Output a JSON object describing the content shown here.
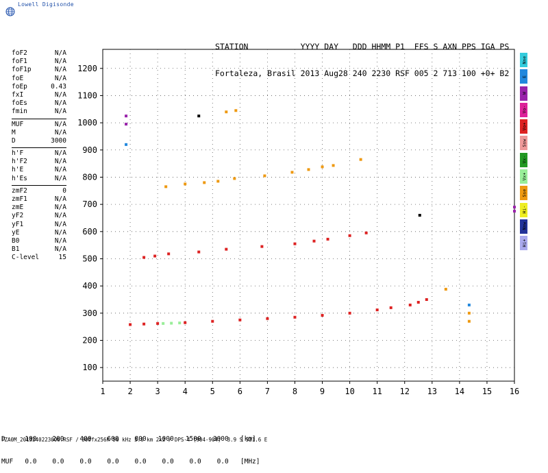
{
  "brand": {
    "name": "Lowell Digisonde",
    "logo_icon": "globe-icon"
  },
  "header": {
    "labels_line": "STATION           YYYY DAY   DDD HHMM P1  FFS S AXN PPS IGA PS",
    "values_line": "Fortaleza, Brasil 2013 Aug28 240 2230 RSF 005 2 713 100 +0+ B2"
  },
  "params": {
    "group1": [
      {
        "label": "foF2",
        "value": "N/A"
      },
      {
        "label": "foF1",
        "value": "N/A"
      },
      {
        "label": "foF1p",
        "value": "N/A"
      },
      {
        "label": "foE",
        "value": "N/A"
      },
      {
        "label": "foEp",
        "value": "0.43"
      },
      {
        "label": "fxI",
        "value": "N/A"
      },
      {
        "label": "foEs",
        "value": "N/A"
      },
      {
        "label": "fmin",
        "value": "N/A"
      }
    ],
    "group2": [
      {
        "label": "MUF",
        "value": "N/A"
      },
      {
        "label": "M",
        "value": "N/A"
      },
      {
        "label": "D",
        "value": "3000"
      }
    ],
    "group3": [
      {
        "label": "h'F",
        "value": "N/A"
      },
      {
        "label": "h'F2",
        "value": "N/A"
      },
      {
        "label": "h'E",
        "value": "N/A"
      },
      {
        "label": "h'Es",
        "value": "N/A"
      }
    ],
    "group4": [
      {
        "label": "zmF2",
        "value": "0"
      },
      {
        "label": "zmF1",
        "value": "N/A"
      },
      {
        "label": "zmE",
        "value": "N/A"
      },
      {
        "label": "yF2",
        "value": "N/A"
      },
      {
        "label": "yF1",
        "value": "N/A"
      },
      {
        "label": "yE",
        "value": "N/A"
      },
      {
        "label": "B0",
        "value": "N/A"
      },
      {
        "label": "B1",
        "value": "N/A"
      },
      {
        "label": "C-level",
        "value": "15"
      }
    ]
  },
  "legend": [
    {
      "label": "Nne",
      "color": "#33ccdd"
    },
    {
      "label": "E",
      "color": "#2288dd"
    },
    {
      "label": "W",
      "color": "#9922aa"
    },
    {
      "label": "Vo-",
      "color": "#dd2299"
    },
    {
      "label": "Vo+",
      "color": "#dd2222"
    },
    {
      "label": "Ssw",
      "color": "#ee9999"
    },
    {
      "label": "Vx-",
      "color": "#229922"
    },
    {
      "label": "Vx+",
      "color": "#99ee99"
    },
    {
      "label": "Sse",
      "color": "#ee9911"
    },
    {
      "label": "Hi-",
      "color": "#eeee22"
    },
    {
      "label": "Nnw",
      "color": "#223399"
    },
    {
      "label": "Hi+",
      "color": "#aaaaee"
    }
  ],
  "footer": {
    "d_line": "D     100    200    400    600    800   1000   1500   3000   [km]",
    "muf_line": "MUF   0.0    0.0    0.0    0.0    0.0    0.0    0.0    0.0   [MHz]",
    "file_line": "FZA0M_2013240223000.RSF / 300fx256h 50 kHz 5.0 km 2x2 / DPS-4 (904-904)  3.9 S 321.6 E"
  },
  "chart_data": {
    "type": "scatter",
    "x_ticks": [
      "1",
      "2",
      "3",
      "4",
      "5",
      "6",
      "7",
      "8",
      "9",
      "10",
      "11",
      "12",
      "13",
      "14",
      "15",
      "16"
    ],
    "y_ticks": [
      "100",
      "200",
      "300",
      "400",
      "500",
      "600",
      "700",
      "800",
      "900",
      "1000",
      "1100",
      "1200"
    ],
    "xlim": [
      1,
      16
    ],
    "ylim": [
      50,
      1270
    ],
    "grid": true,
    "series": [
      {
        "color": "#dd2222",
        "points": [
          [
            2.0,
            258
          ],
          [
            2.5,
            260
          ],
          [
            3.0,
            262
          ],
          [
            4.0,
            265
          ],
          [
            5.0,
            270
          ],
          [
            6.0,
            275
          ],
          [
            7.0,
            280
          ],
          [
            8.0,
            285
          ],
          [
            9.0,
            292
          ],
          [
            10.0,
            300
          ],
          [
            11.0,
            312
          ],
          [
            11.5,
            320
          ],
          [
            12.2,
            330
          ],
          [
            12.5,
            340
          ],
          [
            12.8,
            350
          ]
        ]
      },
      {
        "color": "#99ee99",
        "points": [
          [
            3.2,
            262
          ],
          [
            3.5,
            263
          ],
          [
            3.8,
            264
          ]
        ]
      },
      {
        "color": "#dd2222",
        "points": [
          [
            2.5,
            505
          ],
          [
            2.9,
            510
          ],
          [
            3.4,
            518
          ],
          [
            4.5,
            525
          ],
          [
            5.5,
            535
          ],
          [
            6.8,
            545
          ],
          [
            8.0,
            555
          ],
          [
            8.7,
            565
          ],
          [
            9.2,
            572
          ],
          [
            10.0,
            585
          ],
          [
            10.6,
            595
          ]
        ]
      },
      {
        "color": "#ee9911",
        "points": [
          [
            3.3,
            765
          ],
          [
            4.0,
            775
          ],
          [
            4.7,
            780
          ],
          [
            5.2,
            785
          ],
          [
            5.8,
            795
          ],
          [
            6.9,
            805
          ],
          [
            7.9,
            818
          ],
          [
            8.5,
            828
          ],
          [
            9.0,
            838
          ],
          [
            9.4,
            843
          ],
          [
            10.4,
            865
          ]
        ]
      },
      {
        "color": "#9922aa",
        "points": [
          [
            1.85,
            1025
          ],
          [
            1.85,
            995
          ],
          [
            16.0,
            690
          ],
          [
            16.0,
            675
          ]
        ]
      },
      {
        "color": "#2288dd",
        "points": [
          [
            1.85,
            920
          ],
          [
            14.35,
            330
          ]
        ]
      },
      {
        "color": "#ee9911",
        "points": [
          [
            5.5,
            1040
          ],
          [
            5.85,
            1045
          ],
          [
            14.35,
            270
          ],
          [
            14.35,
            300
          ],
          [
            13.5,
            388
          ]
        ]
      },
      {
        "color": "#000000",
        "points": [
          [
            4.5,
            1025
          ],
          [
            12.55,
            660
          ]
        ]
      }
    ]
  }
}
